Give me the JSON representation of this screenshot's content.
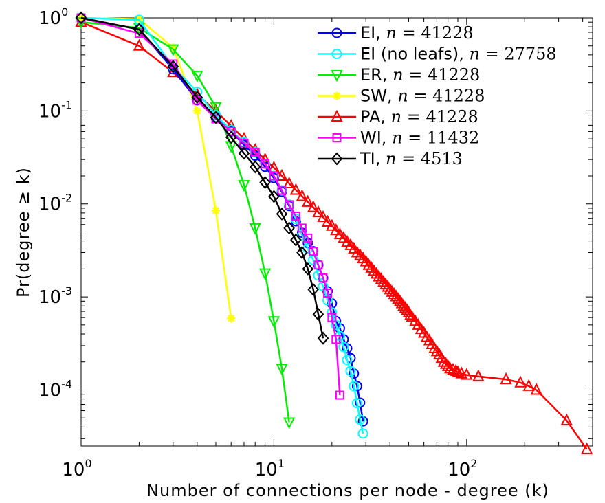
{
  "chart_data": {
    "type": "line",
    "xlabel": "Number of connections per node - degree (k)",
    "ylabel": "Pr(degree ≥ k)",
    "xscale": "log",
    "yscale": "log",
    "xlim": [
      1,
      450
    ],
    "ylim": [
      2.5e-05,
      1
    ],
    "grid": false,
    "legend_position": "top-right",
    "x_ticks": [
      {
        "value": 1,
        "base": "10",
        "exp": "0"
      },
      {
        "value": 10,
        "base": "10",
        "exp": "1"
      },
      {
        "value": 100,
        "base": "10",
        "exp": "2"
      }
    ],
    "y_ticks": [
      {
        "value": 1,
        "base": "10",
        "exp": "0"
      },
      {
        "value": 0.1,
        "base": "10",
        "exp": "-1"
      },
      {
        "value": 0.01,
        "base": "10",
        "exp": "-2"
      },
      {
        "value": 0.001,
        "base": "10",
        "exp": "-3"
      },
      {
        "value": 0.0001,
        "base": "10",
        "exp": "-4"
      }
    ],
    "series": [
      {
        "name": "EI",
        "n_label": "n = 41228",
        "color": "#0000ff",
        "marker": "circle",
        "x": [
          1,
          2,
          3,
          4,
          5,
          6,
          7,
          8,
          9,
          10,
          11,
          12,
          13,
          14,
          15,
          16,
          17,
          18,
          19,
          20,
          21,
          22,
          23,
          24,
          25,
          26,
          27,
          28,
          29
        ],
        "y": [
          1.0,
          0.75,
          0.28,
          0.13,
          0.085,
          0.06,
          0.043,
          0.033,
          0.025,
          0.019,
          0.0135,
          0.0095,
          0.0065,
          0.0049,
          0.0038,
          0.0031,
          0.0022,
          0.0016,
          0.00115,
          0.00085,
          0.00055,
          0.00046,
          0.00035,
          0.00028,
          0.00022,
          0.00015,
          0.00011,
          7.3e-05,
          4.6e-05
        ]
      },
      {
        "name": "EI (no leafs)",
        "n_label": "n = 27758",
        "color": "#00ffff",
        "marker": "circle",
        "x": [
          1,
          2,
          3,
          4,
          5,
          6,
          7,
          8,
          9,
          10,
          11,
          12,
          13,
          14,
          15,
          16,
          17,
          18,
          19,
          20,
          21,
          22,
          23,
          24,
          25,
          26,
          27,
          28,
          29
        ],
        "y": [
          1.0,
          0.95,
          0.3,
          0.16,
          0.09,
          0.062,
          0.046,
          0.036,
          0.027,
          0.02,
          0.014,
          0.0098,
          0.0069,
          0.0046,
          0.0033,
          0.0025,
          0.0017,
          0.0013,
          0.00092,
          0.00068,
          0.0005,
          0.00038,
          0.00029,
          0.00021,
          0.00016,
          0.00011,
          7.2e-05,
          4.8e-05,
          3.4e-05
        ]
      },
      {
        "name": "ER",
        "n_label": "n = 41228",
        "color": "#00ee00",
        "marker": "triangle-down",
        "x": [
          1,
          2,
          3,
          4,
          5,
          6,
          7,
          8,
          9,
          10,
          11,
          12
        ],
        "y": [
          0.9,
          0.78,
          0.46,
          0.24,
          0.11,
          0.042,
          0.016,
          0.0055,
          0.0018,
          0.00055,
          0.00017,
          4.5e-05
        ]
      },
      {
        "name": "SW",
        "n_label": "n = 41228",
        "color": "#ffff00",
        "marker": "star",
        "x": [
          1,
          2,
          3,
          4,
          5,
          6
        ],
        "y": [
          1.0,
          0.97,
          0.48,
          0.1,
          0.0085,
          0.00059
        ]
      },
      {
        "name": "PA",
        "n_label": "n = 41228",
        "color": "#ff0000",
        "marker": "triangle-up",
        "x": [
          1,
          2,
          3,
          4,
          5,
          6,
          7,
          8,
          9,
          10,
          11,
          12,
          13,
          14,
          15,
          16,
          17,
          18,
          19,
          20,
          21,
          22,
          23,
          24,
          25,
          26,
          27,
          28,
          29,
          30,
          31,
          32,
          33,
          34,
          35,
          36,
          37,
          38,
          39,
          40,
          41,
          42,
          43,
          44,
          45,
          46,
          47,
          48,
          49,
          50,
          51,
          52,
          54,
          56,
          58,
          60,
          62,
          64,
          66,
          68,
          70,
          72,
          74,
          76,
          78,
          80,
          82,
          85,
          88,
          90,
          94,
          100,
          115,
          160,
          190,
          210,
          230,
          330,
          420
        ],
        "y": [
          0.9,
          0.5,
          0.26,
          0.15,
          0.1,
          0.069,
          0.05,
          0.038,
          0.03,
          0.0245,
          0.02,
          0.0166,
          0.0141,
          0.0121,
          0.0105,
          0.0092,
          0.0081,
          0.0072,
          0.0064,
          0.0058,
          0.0052,
          0.0047,
          0.0043,
          0.0039,
          0.0036,
          0.0033,
          0.003,
          0.0028,
          0.0026,
          0.0024,
          0.0022,
          0.00205,
          0.0019,
          0.00177,
          0.00165,
          0.00155,
          0.00145,
          0.00136,
          0.00128,
          0.0012,
          0.00113,
          0.00107,
          0.00101,
          0.00095,
          0.0009,
          0.00085,
          0.0008,
          0.00076,
          0.00072,
          0.00068,
          0.00064,
          0.00061,
          0.00055,
          0.0005,
          0.00045,
          0.00041,
          0.00037,
          0.00034,
          0.00031,
          0.00028,
          0.00026,
          0.00024,
          0.00022,
          0.0002,
          0.00019,
          0.00018,
          0.00017,
          0.000165,
          0.00016,
          0.000155,
          0.00015,
          0.000145,
          0.00014,
          0.00013,
          0.00012,
          0.00011,
          0.0001,
          4.7e-05,
          2.3e-05
        ]
      },
      {
        "name": "WI",
        "n_label": "n = 11432",
        "color": "#ff00ff",
        "marker": "square",
        "x": [
          1,
          2,
          3,
          4,
          5,
          6,
          7,
          8,
          9,
          10,
          11,
          12,
          13,
          14,
          15,
          16,
          17,
          18,
          19,
          20,
          21,
          22
        ],
        "y": [
          1.0,
          0.68,
          0.32,
          0.13,
          0.082,
          0.06,
          0.045,
          0.036,
          0.027,
          0.02,
          0.014,
          0.0098,
          0.0074,
          0.0055,
          0.0043,
          0.0031,
          0.0022,
          0.0016,
          0.0011,
          0.0006,
          0.00035,
          8.8e-05
        ]
      },
      {
        "name": "TI",
        "n_label": "n = 4513",
        "color": "#000000",
        "marker": "diamond",
        "x": [
          1,
          2,
          3,
          4,
          5,
          6,
          7,
          8,
          9,
          10,
          11,
          12,
          13,
          14,
          15,
          16,
          17,
          18
        ],
        "y": [
          1.0,
          0.75,
          0.3,
          0.14,
          0.085,
          0.052,
          0.035,
          0.025,
          0.017,
          0.012,
          0.0078,
          0.0055,
          0.0041,
          0.003,
          0.002,
          0.0012,
          0.00065,
          0.00036
        ]
      }
    ]
  }
}
